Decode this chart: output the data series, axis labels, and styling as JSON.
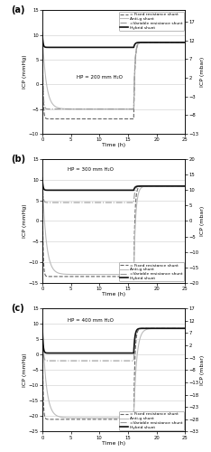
{
  "panels": [
    {
      "label": "(a)",
      "hp_text": "HP = 200 mm H₂O",
      "ylim": [
        -10,
        15
      ],
      "ylim_right": [
        -13,
        20
      ],
      "yticks_left": [
        -10,
        -5,
        0,
        5,
        10,
        15
      ],
      "yticks_right": [
        -13,
        -8,
        -3,
        2,
        7,
        12,
        17
      ],
      "legend_loc": "upper right",
      "hp_x": 6,
      "hp_y": 1.5,
      "fixed_steady": -7.0,
      "fixed_drop_rate": 8,
      "anti_steady": -5.0,
      "anti_drop_rate": 1.5,
      "variable_steady": -5.0,
      "variable_drop_rate": 8,
      "hybrid_steady": 7.5,
      "hybrid_drop_rate": 8,
      "fixed_end": 8.5,
      "anti_end": 8.5,
      "variable_end": 8.5,
      "hybrid_end": 8.5,
      "fixed_rise_rate": 5,
      "anti_rise_rate": 5,
      "variable_rise_rate": 5,
      "hybrid_rise_rate": 5
    },
    {
      "label": "(b)",
      "hp_text": "HP = 300 mm H₂O",
      "ylim": [
        -15,
        15
      ],
      "ylim_right": [
        -20,
        20
      ],
      "yticks_left": [
        -15,
        -10,
        -5,
        0,
        5,
        10,
        15
      ],
      "yticks_right": [
        -20,
        -15,
        -10,
        -5,
        0,
        5,
        10,
        15,
        20
      ],
      "legend_loc": "lower right",
      "hp_x": 4.5,
      "hp_y": 12.5,
      "fixed_steady": -13.5,
      "fixed_drop_rate": 8,
      "anti_steady": -13.0,
      "anti_drop_rate": 1.5,
      "variable_steady": 4.5,
      "variable_drop_rate": 8,
      "hybrid_steady": 7.5,
      "hybrid_drop_rate": 8,
      "fixed_end": 8.5,
      "anti_end": 8.5,
      "variable_end": 8.5,
      "hybrid_end": 8.5,
      "fixed_rise_rate": 5,
      "anti_rise_rate": 3,
      "variable_rise_rate": 5,
      "hybrid_rise_rate": 5
    },
    {
      "label": "(c)",
      "hp_text": "HP = 400 mm H₂O",
      "ylim": [
        -25,
        15
      ],
      "ylim_right": [
        -33,
        17
      ],
      "yticks_left": [
        -25,
        -20,
        -15,
        -10,
        -5,
        0,
        5,
        10,
        15
      ],
      "yticks_right": [
        -33,
        -28,
        -23,
        -18,
        -13,
        -8,
        -3,
        2,
        7,
        12,
        17
      ],
      "legend_loc": "lower right",
      "hp_x": 4.5,
      "hp_y": 11,
      "fixed_steady": -21.0,
      "fixed_drop_rate": 8,
      "anti_steady": -20.5,
      "anti_drop_rate": 1.5,
      "variable_steady": -2.0,
      "variable_drop_rate": 8,
      "hybrid_steady": 0.5,
      "hybrid_drop_rate": 8,
      "fixed_end": 8.5,
      "anti_end": 8.5,
      "variable_end": 8.5,
      "hybrid_end": 8.5,
      "fixed_rise_rate": 5,
      "anti_rise_rate": 2,
      "variable_rise_rate": 5,
      "hybrid_rise_rate": 5
    }
  ],
  "xlim": [
    0,
    25
  ],
  "xticks": [
    0,
    5,
    10,
    15,
    20,
    25
  ],
  "xlabel": "Time (h)",
  "ylabel_left": "ICP (mmHg)",
  "ylabel_right": "ICP (mbar)",
  "line_colors": {
    "fixed": "#666666",
    "anti": "#bbbbbb",
    "variable": "#999999",
    "hybrid": "#111111"
  },
  "line_styles": {
    "fixed": "--",
    "anti": "-",
    "variable": "-.",
    "hybrid": "-"
  },
  "line_widths": {
    "fixed": 0.8,
    "anti": 0.8,
    "variable": 0.8,
    "hybrid": 1.2
  },
  "legend_labels": {
    "fixed": "= Fixed resistance shunt",
    "anti": "Anti-g shunt",
    "variable": "=Variable resistance shunt",
    "hybrid": "Hybrid shunt"
  },
  "t_start": 0,
  "t_end": 25,
  "t_lie_start": 16,
  "t_lie_end": 25,
  "t_sit_start": 0,
  "t_sit_end": 16,
  "initial_value": 10.5,
  "background_color": "#ffffff",
  "grid_color": "#cccccc"
}
